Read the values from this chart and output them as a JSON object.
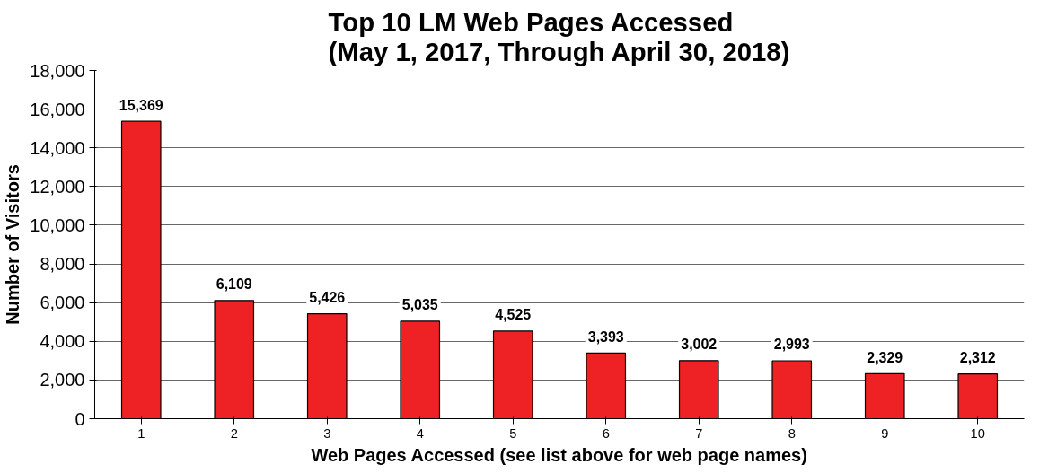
{
  "chart_data": {
    "type": "bar",
    "title": "Top 10 LM Web Pages Accessed\n(May 1, 2017, Through April 30, 2018)",
    "xlabel": "Web Pages Accessed (see list above for web page names)",
    "ylabel": "Number of Visitors",
    "categories": [
      "1",
      "2",
      "3",
      "4",
      "5",
      "6",
      "7",
      "8",
      "9",
      "10"
    ],
    "values": [
      15369,
      6109,
      5426,
      5035,
      4525,
      3393,
      3002,
      2993,
      2329,
      2312
    ],
    "color": "#ee2224",
    "ylim": [
      0,
      18000
    ],
    "yticks": [
      {
        "value": 0,
        "label": "0"
      },
      {
        "value": 2000,
        "label": "2,000"
      },
      {
        "value": 4000,
        "label": "4,000"
      },
      {
        "value": 6000,
        "label": "6,000"
      },
      {
        "value": 8000,
        "label": "8,000"
      },
      {
        "value": 10000,
        "label": "10,000"
      },
      {
        "value": 12000,
        "label": "12,000"
      },
      {
        "value": 14000,
        "label": "14,000"
      },
      {
        "value": 16000,
        "label": "16,000"
      },
      {
        "value": 18000,
        "label": "18,000"
      }
    ],
    "value_labels": [
      "15,369",
      "6,109",
      "5,426",
      "5,035",
      "4,525",
      "3,393",
      "3,002",
      "2,993",
      "2,329",
      "2,312"
    ],
    "grid": "y"
  }
}
